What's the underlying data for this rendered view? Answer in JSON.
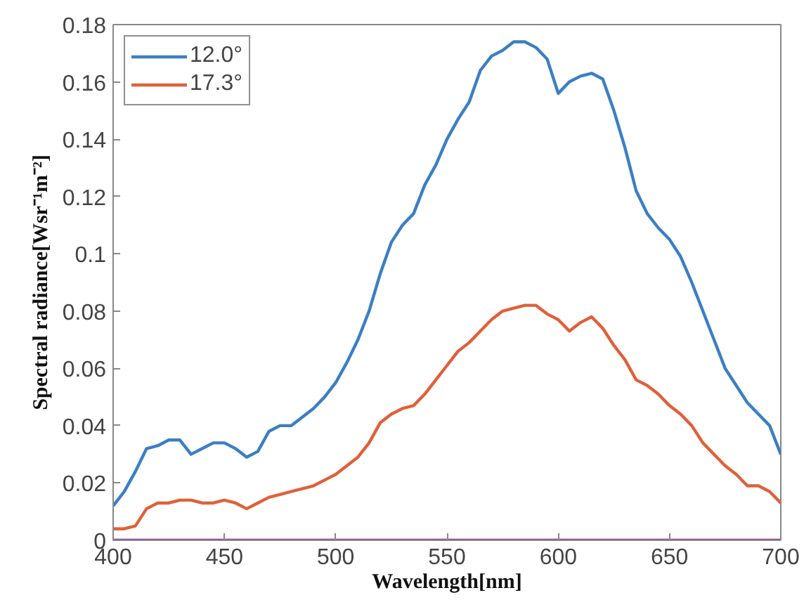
{
  "chart_data": {
    "type": "line",
    "xlabel": "Wavelength[nm]",
    "ylabel": "Spectral radiance[Wsr⁻¹m⁻²]",
    "xlim": [
      400,
      700
    ],
    "ylim": [
      0,
      0.18
    ],
    "xticks": [
      400,
      450,
      500,
      550,
      600,
      650,
      700
    ],
    "yticks": [
      0,
      0.02,
      0.04,
      0.06,
      0.08,
      {
        "value": 0.1,
        "label": "0.1"
      },
      0.12,
      0.14,
      0.16,
      0.18
    ],
    "grid": false,
    "legend": "top left",
    "x": [
      400,
      405,
      410,
      415,
      420,
      425,
      430,
      435,
      440,
      445,
      450,
      455,
      460,
      465,
      470,
      475,
      480,
      485,
      490,
      495,
      500,
      505,
      510,
      515,
      520,
      525,
      530,
      535,
      540,
      545,
      550,
      555,
      560,
      565,
      570,
      575,
      580,
      585,
      590,
      595,
      600,
      605,
      610,
      615,
      620,
      625,
      630,
      635,
      640,
      645,
      650,
      655,
      660,
      665,
      670,
      675,
      680,
      685,
      690,
      695,
      700
    ],
    "series": [
      {
        "name": "12.0°",
        "color": "#3b7fc4",
        "values": [
          0.012,
          0.017,
          0.024,
          0.032,
          0.033,
          0.035,
          0.035,
          0.03,
          0.032,
          0.034,
          0.034,
          0.032,
          0.029,
          0.031,
          0.038,
          0.04,
          0.04,
          0.043,
          0.046,
          0.05,
          0.055,
          0.062,
          0.07,
          0.08,
          0.093,
          0.104,
          0.11,
          0.114,
          0.124,
          0.131,
          0.14,
          0.147,
          0.153,
          0.164,
          0.169,
          0.171,
          0.174,
          0.174,
          0.172,
          0.168,
          0.156,
          0.16,
          0.162,
          0.163,
          0.161,
          0.15,
          0.137,
          0.122,
          0.114,
          0.109,
          0.105,
          0.099,
          0.09,
          0.08,
          0.07,
          0.06,
          0.054,
          0.048,
          0.044,
          0.04,
          0.03
        ]
      },
      {
        "name": "17.3°",
        "color": "#e0603a",
        "values": [
          0.004,
          0.004,
          0.005,
          0.011,
          0.013,
          0.013,
          0.014,
          0.014,
          0.013,
          0.013,
          0.014,
          0.013,
          0.011,
          0.013,
          0.015,
          0.016,
          0.017,
          0.018,
          0.019,
          0.021,
          0.023,
          0.026,
          0.029,
          0.034,
          0.041,
          0.044,
          0.046,
          0.047,
          0.051,
          0.056,
          0.061,
          0.066,
          0.069,
          0.073,
          0.077,
          0.08,
          0.081,
          0.082,
          0.082,
          0.079,
          0.077,
          0.073,
          0.076,
          0.078,
          0.074,
          0.068,
          0.063,
          0.056,
          0.054,
          0.051,
          0.047,
          0.044,
          0.04,
          0.034,
          0.03,
          0.026,
          0.023,
          0.019,
          0.019,
          0.017,
          0.013
        ]
      },
      {
        "color": "#9b3fa0",
        "x": [
          400,
          700
        ],
        "values": [
          0,
          0
        ]
      }
    ]
  }
}
